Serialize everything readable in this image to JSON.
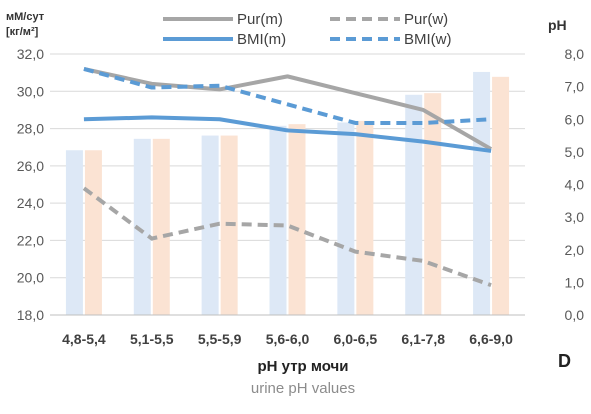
{
  "chart_data": {
    "type": "bar+line",
    "panel_label": "D",
    "left_axis": {
      "label_line1": "мМ/сут",
      "label_line2": "[кг/м²]",
      "range": [
        18,
        32
      ],
      "ticks": [
        "18,0",
        "20,0",
        "22,0",
        "24,0",
        "26,0",
        "28,0",
        "30,0",
        "32,0"
      ]
    },
    "right_axis": {
      "label": "pH",
      "range": [
        0,
        8
      ],
      "ticks": [
        "0,0",
        "1,0",
        "2,0",
        "3,0",
        "4,0",
        "5,0",
        "6,0",
        "7,0",
        "8,0"
      ]
    },
    "xlabel": "pH утр мочи",
    "xlabel_secondary": "urine pH values",
    "categories": [
      "4,8-5,4",
      "5,1-5,5",
      "5,5-5,9",
      "5,6-6,0",
      "6,0-6,5",
      "6,1-7,8",
      "6,6-9,0"
    ],
    "bars": [
      {
        "axis": "right",
        "color": "#dde8f6",
        "values": [
          5.05,
          5.4,
          5.5,
          5.8,
          5.9,
          6.75,
          7.45
        ]
      },
      {
        "axis": "right",
        "color": "#fbe3d3",
        "values": [
          5.05,
          5.4,
          5.5,
          5.85,
          5.95,
          6.8,
          7.3
        ]
      }
    ],
    "lines": [
      {
        "name": "Pur(m)",
        "axis": "left",
        "color": "#a6a6a6",
        "dashed": false,
        "values": [
          31.2,
          30.4,
          30.1,
          30.8,
          29.9,
          29.0,
          26.9
        ]
      },
      {
        "name": "Pur(w)",
        "axis": "left",
        "color": "#a6a6a6",
        "dashed": true,
        "values": [
          24.8,
          22.1,
          22.9,
          22.8,
          21.4,
          20.9,
          19.6
        ]
      },
      {
        "name": "BMI(m)",
        "axis": "left",
        "color": "#5b9bd5",
        "dashed": false,
        "values": [
          28.5,
          28.6,
          28.5,
          27.9,
          27.7,
          27.3,
          26.8
        ]
      },
      {
        "name": "BMI(w)",
        "axis": "left",
        "color": "#5b9bd5",
        "dashed": true,
        "values": [
          31.2,
          30.2,
          30.3,
          29.3,
          28.3,
          28.3,
          28.5
        ]
      }
    ]
  }
}
